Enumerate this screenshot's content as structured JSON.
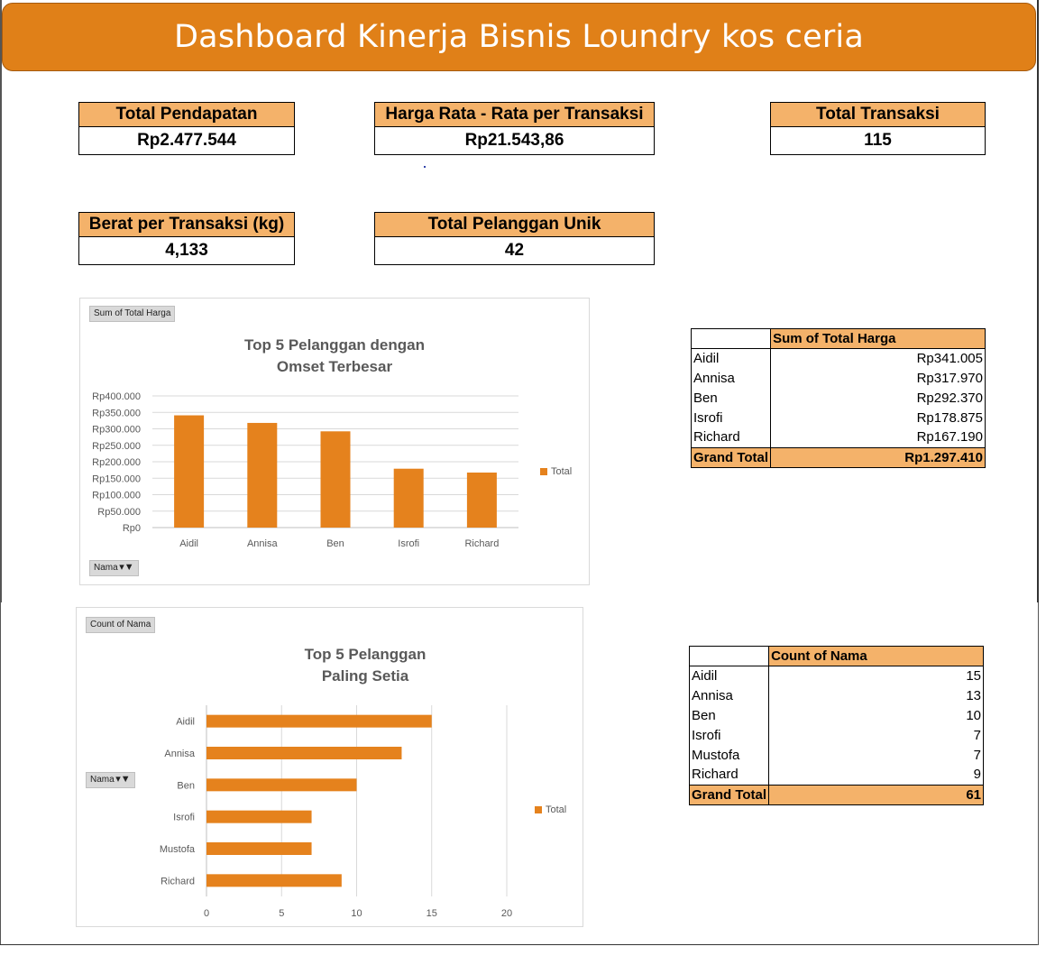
{
  "title": "Dashboard Kinerja Bisnis Loundry kos ceria",
  "kpis": {
    "total_pendapatan": {
      "label": "Total Pendapatan",
      "value": "Rp2.477.544"
    },
    "harga_rata": {
      "label": "Harga Rata - Rata per Transaksi",
      "value": "Rp21.543,86"
    },
    "total_transaksi": {
      "label": "Total Transaksi",
      "value": "115"
    },
    "berat_per_transaksi": {
      "label": "Berat per Transaksi (kg)",
      "value": "4,133"
    },
    "total_pelanggan": {
      "label": "Total Pelanggan Unik",
      "value": "42"
    }
  },
  "chart1": {
    "field_button": "Sum of Total Harga",
    "title_line1": "Top 5 Pelanggan dengan",
    "title_line2": "Omset Terbesar",
    "legend": "Total",
    "axis_field_button": "Nama",
    "color": "#e5821d",
    "y_ticks": [
      "Rp0",
      "Rp50.000",
      "Rp100.000",
      "Rp150.000",
      "Rp200.000",
      "Rp250.000",
      "Rp300.000",
      "Rp350.000",
      "Rp400.000"
    ]
  },
  "chart2": {
    "field_button": "Count of Nama",
    "title_line1": "Top 5 Pelanggan",
    "title_line2": "Paling Setia",
    "legend": "Total",
    "axis_field_button": "Nama",
    "color": "#e5821d",
    "x_ticks": [
      "0",
      "5",
      "10",
      "15",
      "20"
    ]
  },
  "chart_data": [
    {
      "type": "bar",
      "title": "Top 5 Pelanggan dengan Omset Terbesar",
      "categories": [
        "Aidil",
        "Annisa",
        "Ben",
        "Isrofi",
        "Richard"
      ],
      "series": [
        {
          "name": "Total",
          "values": [
            341005,
            317970,
            292370,
            178875,
            167190
          ]
        }
      ],
      "ylim": [
        0,
        400000
      ],
      "orientation": "vertical",
      "grid": true,
      "legend": "right"
    },
    {
      "type": "bar",
      "title": "Top 5 Pelanggan Paling Setia",
      "categories": [
        "Aidil",
        "Annisa",
        "Ben",
        "Isrofi",
        "Mustofa",
        "Richard"
      ],
      "series": [
        {
          "name": "Total",
          "values": [
            15,
            13,
            10,
            7,
            7,
            9
          ]
        }
      ],
      "xlim": [
        0,
        20
      ],
      "orientation": "horizontal",
      "grid": true,
      "legend": "right"
    }
  ],
  "pivot1": {
    "header": "Sum of Total Harga",
    "rows": [
      {
        "name": "Aidil",
        "value": "Rp341.005"
      },
      {
        "name": "Annisa",
        "value": "Rp317.970"
      },
      {
        "name": "Ben",
        "value": "Rp292.370"
      },
      {
        "name": "Isrofi",
        "value": "Rp178.875"
      },
      {
        "name": "Richard",
        "value": "Rp167.190"
      }
    ],
    "total_label": "Grand Total",
    "total_value": "Rp1.297.410"
  },
  "pivot2": {
    "header": "Count of Nama",
    "rows": [
      {
        "name": "Aidil",
        "value": "15"
      },
      {
        "name": "Annisa",
        "value": "13"
      },
      {
        "name": "Ben",
        "value": "10"
      },
      {
        "name": "Isrofi",
        "value": "7"
      },
      {
        "name": "Mustofa",
        "value": "7"
      },
      {
        "name": "Richard",
        "value": "9"
      }
    ],
    "total_label": "Grand Total",
    "total_value": "61"
  }
}
